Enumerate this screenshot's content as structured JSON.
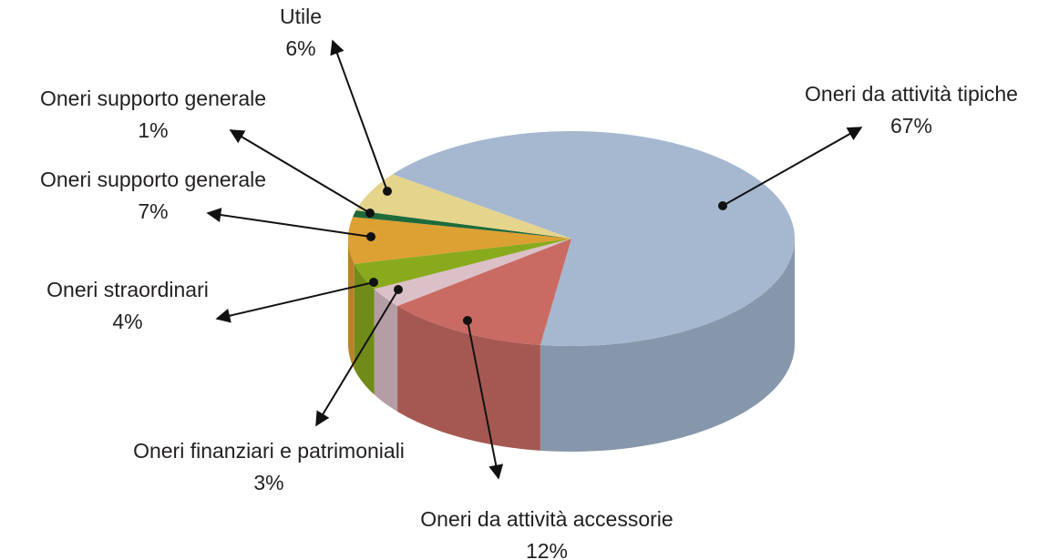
{
  "chart_data": {
    "type": "pie",
    "categories": [
      "Oneri da attività tipiche",
      "Oneri da attività accessorie",
      "Oneri finanziari e patrimoniali",
      "Oneri straordinari",
      "Oneri supporto generale",
      "Oneri supporto generale",
      "Utile"
    ],
    "values": [
      67,
      12,
      3,
      4,
      7,
      1,
      6
    ],
    "value_labels": [
      "67%",
      "12%",
      "3%",
      "4%",
      "7%",
      "1%",
      "6%"
    ],
    "colors": [
      "#a5b8d0",
      "#c96b63",
      "#dcc0c8",
      "#8aaa1e",
      "#dda033",
      "#1f6a3a",
      "#e5d48c"
    ]
  }
}
